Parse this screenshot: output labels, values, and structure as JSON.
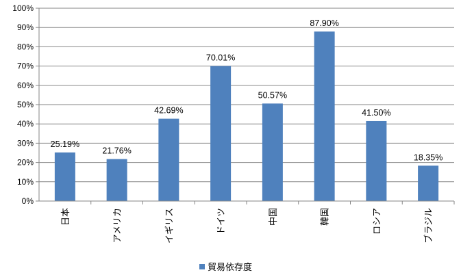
{
  "chart_data": {
    "type": "bar",
    "categories": [
      "日本",
      "アメリカ",
      "イギリス",
      "ドイツ",
      "中国",
      "韓国",
      "ロシア",
      "ブラジル"
    ],
    "series": [
      {
        "name": "貿易依存度",
        "values": [
          25.19,
          21.76,
          42.69,
          70.01,
          50.57,
          87.9,
          41.5,
          18.35
        ],
        "color": "#4F81BD"
      }
    ],
    "data_labels": [
      "25.19%",
      "21.76%",
      "42.69%",
      "70.01%",
      "50.57%",
      "87.90%",
      "41.50%",
      "18.35%"
    ],
    "ylim": [
      0,
      100
    ],
    "y_ticks": [
      "0%",
      "10%",
      "20%",
      "30%",
      "40%",
      "50%",
      "60%",
      "70%",
      "80%",
      "90%",
      "100%"
    ],
    "grid": true,
    "legend": "bottom",
    "title": "",
    "xlabel": "",
    "ylabel": ""
  }
}
